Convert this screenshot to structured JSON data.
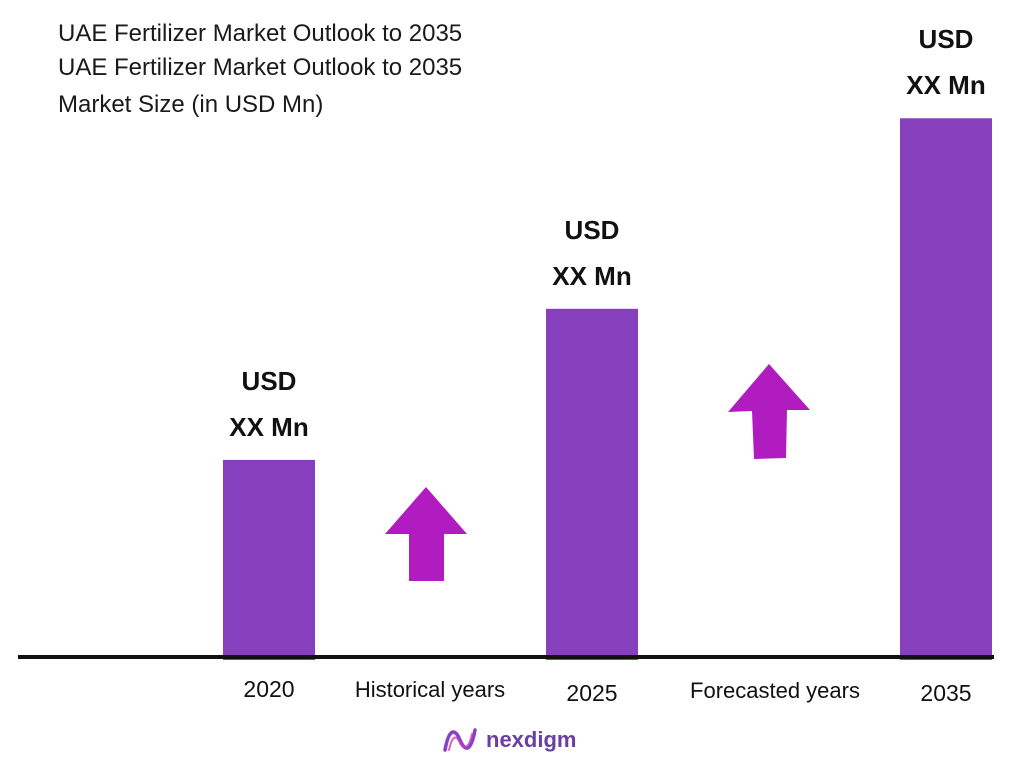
{
  "titles": [
    "UAE Fertilizer Market Outlook to 2035",
    "UAE Fertilizer Market Outlook to 2035",
    "Market Size (in USD Mn)"
  ],
  "colors": {
    "bar": "#8640bd",
    "arrow": "#b01cc0",
    "axis": "#111111"
  },
  "chart_data": {
    "type": "bar",
    "categories": [
      "2020",
      "2025",
      "2035"
    ],
    "values": [
      30,
      53,
      82
    ],
    "ylim": [
      0,
      100
    ],
    "value_labels": [
      [
        "USD",
        "XX Mn"
      ],
      [
        "USD",
        "XX Mn"
      ],
      [
        "USD",
        "XX Mn"
      ]
    ],
    "period_labels": [
      "Historical years",
      "Forecasted years"
    ],
    "grid": false
  },
  "logo": {
    "text": "nexdigm",
    "icon": "nexdigm-logo-icon"
  }
}
